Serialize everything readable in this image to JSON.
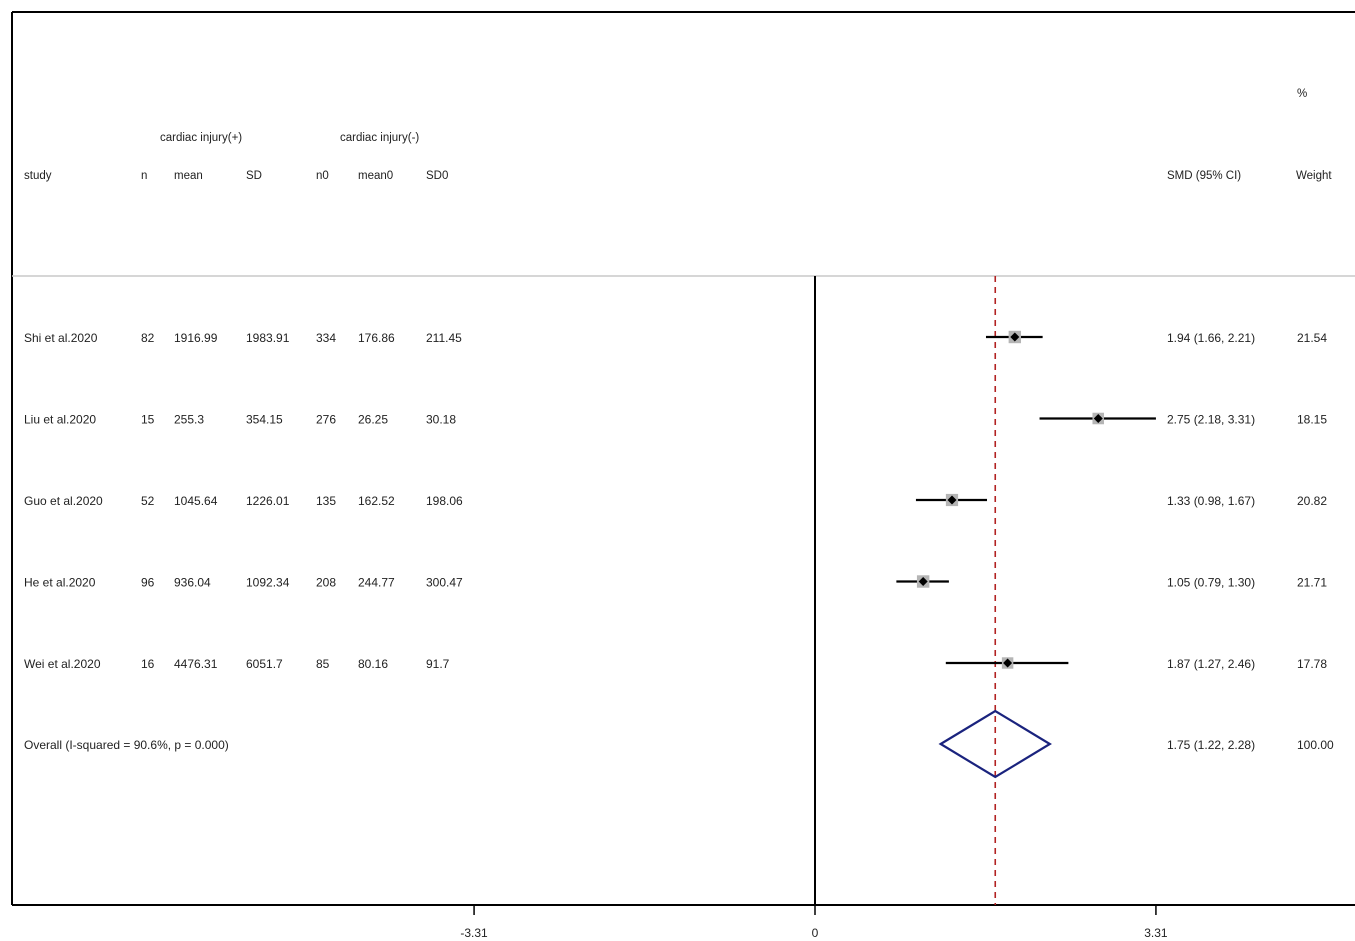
{
  "chart_data": {
    "type": "forest",
    "group_headers": {
      "exposed": "cardiac injury(+)",
      "control": "cardiac injury(-)"
    },
    "columns": {
      "study": "study",
      "n": "n",
      "mean": "mean",
      "sd": "SD",
      "n0": "n0",
      "mean0": "mean0",
      "sd0": "SD0",
      "effect": "SMD (95% CI)",
      "weight_pct": "%",
      "weight": "Weight"
    },
    "studies": [
      {
        "study": "Shi et al.2020",
        "n": "82",
        "mean": "1916.99",
        "sd": "1983.91",
        "n0": "334",
        "mean0": "176.86",
        "sd0": "211.45",
        "smd": 1.94,
        "lo": 1.66,
        "hi": 2.21,
        "ci_text": "1.94 (1.66, 2.21)",
        "weight": "21.54"
      },
      {
        "study": "Liu et al.2020",
        "n": "15",
        "mean": "255.3",
        "sd": "354.15",
        "n0": "276",
        "mean0": "26.25",
        "sd0": "30.18",
        "smd": 2.75,
        "lo": 2.18,
        "hi": 3.31,
        "ci_text": "2.75 (2.18, 3.31)",
        "weight": "18.15"
      },
      {
        "study": "Guo et al.2020",
        "n": "52",
        "mean": "1045.64",
        "sd": "1226.01",
        "n0": "135",
        "mean0": "162.52",
        "sd0": "198.06",
        "smd": 1.33,
        "lo": 0.98,
        "hi": 1.67,
        "ci_text": "1.33 (0.98, 1.67)",
        "weight": "20.82"
      },
      {
        "study": "He et al.2020",
        "n": "96",
        "mean": "936.04",
        "sd": "1092.34",
        "n0": "208",
        "mean0": "244.77",
        "sd0": "300.47",
        "smd": 1.05,
        "lo": 0.79,
        "hi": 1.3,
        "ci_text": "1.05 (0.79, 1.30)",
        "weight": "21.71"
      },
      {
        "study": "Wei et al.2020",
        "n": "16",
        "mean": "4476.31",
        "sd": "6051.7",
        "n0": "85",
        "mean0": "80.16",
        "sd0": "91.7",
        "smd": 1.87,
        "lo": 1.27,
        "hi": 2.46,
        "ci_text": "1.87 (1.27, 2.46)",
        "weight": "17.78"
      }
    ],
    "overall": {
      "label": "Overall  (I-squared = 90.6%, p = 0.000)",
      "smd": 1.75,
      "lo": 1.22,
      "hi": 2.28,
      "ci_text": "1.75 (1.22, 2.28)",
      "weight": "100.00"
    },
    "x_ticks": [
      {
        "value": -3.31,
        "label": "-3.31"
      },
      {
        "value": 0,
        "label": "0"
      },
      {
        "value": 3.31,
        "label": "3.31"
      }
    ],
    "xlim": [
      -3.31,
      3.31
    ],
    "null_line": 0,
    "colors": {
      "ci_line": "#000000",
      "box": "#b5b5b5",
      "diamond": "#1a237e",
      "overall_line": "#b22222",
      "frame": "#000000"
    }
  }
}
